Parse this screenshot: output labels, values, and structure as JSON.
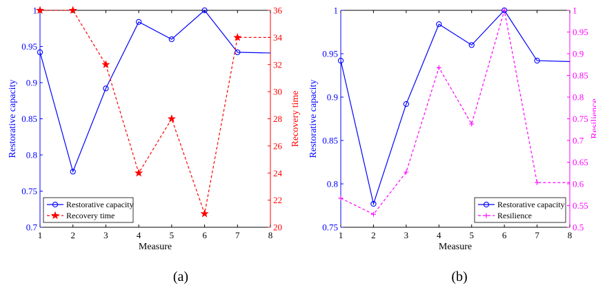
{
  "chart_data": [
    {
      "type": "line",
      "caption": "(a)",
      "xlabel": "Measure",
      "x": [
        1,
        2,
        3,
        4,
        5,
        6,
        7,
        8
      ],
      "xlim": [
        1,
        8
      ],
      "xticks": [
        "1",
        "2",
        "3",
        "4",
        "5",
        "6",
        "7",
        "8"
      ],
      "left_axis": {
        "label": "Restorative capacity",
        "color": "#0000ff",
        "ylim": [
          0.7,
          1
        ],
        "ticks": [
          "0.7",
          "0.75",
          "0.8",
          "0.85",
          "0.9",
          "0.95",
          "1"
        ]
      },
      "right_axis": {
        "label": "Recovery time",
        "color": "#ff0000",
        "ylim": [
          20,
          36
        ],
        "ticks": [
          "20",
          "22",
          "24",
          "26",
          "28",
          "30",
          "32",
          "34",
          "36"
        ]
      },
      "series": [
        {
          "name": "Restorative capacity",
          "axis": "left",
          "color": "#0000ff",
          "marker": "circle",
          "values": [
            0.942,
            0.777,
            0.892,
            0.984,
            0.96,
            1.0,
            0.942,
            0.941
          ],
          "marked_points": [
            1,
            2,
            3,
            4,
            5,
            6,
            7
          ]
        },
        {
          "name": "Recovery time",
          "axis": "right",
          "color": "#ff0000",
          "marker": "star",
          "dashed": true,
          "values": [
            36,
            36,
            32,
            24,
            28,
            21,
            34,
            34
          ],
          "marked_points": [
            1,
            2,
            3,
            4,
            5,
            6,
            7
          ]
        }
      ],
      "legend": {
        "placement": "bottom-left"
      },
      "grid": false
    },
    {
      "type": "line",
      "caption": "(b)",
      "xlabel": "Measure",
      "x": [
        1,
        2,
        3,
        4,
        5,
        6,
        7,
        8
      ],
      "xlim": [
        1,
        8
      ],
      "xticks": [
        "1",
        "2",
        "3",
        "4",
        "5",
        "6",
        "7",
        "8"
      ],
      "left_axis": {
        "label": "Restorative capacity",
        "color": "#0000ff",
        "ylim": [
          0.75,
          1
        ],
        "ticks": [
          "0.75",
          "0.8",
          "0.85",
          "0.9",
          "0.95",
          "1"
        ]
      },
      "right_axis": {
        "label": "Resilience",
        "color": "#ff00ff",
        "ylim": [
          0.5,
          1
        ],
        "ticks": [
          "0.5",
          "0.55",
          "0.6",
          "0.65",
          "0.7",
          "0.75",
          "0.8",
          "0.85",
          "0.9",
          "0.95",
          "1"
        ]
      },
      "series": [
        {
          "name": "Restorative capacity",
          "axis": "left",
          "color": "#0000ff",
          "marker": "circle",
          "values": [
            0.942,
            0.777,
            0.892,
            0.984,
            0.96,
            1.0,
            0.942,
            0.941
          ],
          "marked_points": [
            1,
            2,
            3,
            4,
            5,
            6,
            7
          ]
        },
        {
          "name": "Resilience",
          "axis": "right",
          "color": "#ff00ff",
          "marker": "plus",
          "dashed": true,
          "values": [
            0.567,
            0.53,
            0.627,
            0.868,
            0.738,
            1.0,
            0.603,
            0.603
          ],
          "marked_points": [
            1,
            2,
            3,
            4,
            5,
            6,
            7
          ]
        }
      ],
      "legend": {
        "placement": "bottom-right"
      },
      "grid": false
    }
  ]
}
